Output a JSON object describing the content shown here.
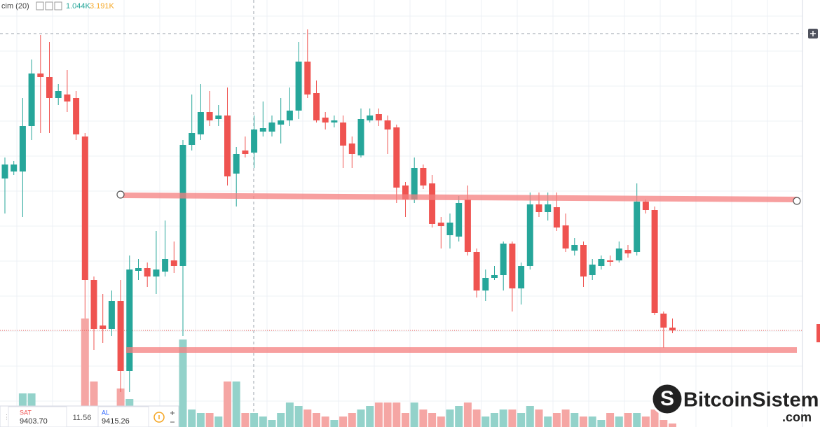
{
  "toolbar": {
    "indicator": "cim (20)",
    "value1": "1.044K",
    "value2": "3.191K"
  },
  "chart_data": {
    "type": "candlestick",
    "open": [
      355,
      365,
      365,
      430,
      505,
      500,
      470,
      475,
      470,
      415,
      210,
      145,
      140,
      180,
      80,
      223,
      227,
      215,
      222,
      238,
      230,
      403,
      418,
      450,
      440,
      445,
      362,
      395,
      392,
      422,
      422,
      432,
      438,
      452,
      522,
      477,
      442,
      435,
      435,
      405,
      388,
      438,
      447,
      438,
      428,
      345,
      325,
      370,
      348,
      292,
      274,
      272,
      325,
      250,
      195,
      213,
      217,
      262,
      198,
      230,
      318,
      307,
      314,
      288,
      252,
      260,
      217,
      230,
      238,
      238,
      253,
      250,
      322,
      310,
      162,
      142
    ],
    "high": [
      385,
      380,
      470,
      525,
      560,
      550,
      490,
      510,
      480,
      420,
      215,
      190,
      195,
      210,
      245,
      240,
      235,
      280,
      295,
      265,
      410,
      475,
      490,
      480,
      460,
      485,
      400,
      415,
      445,
      465,
      445,
      470,
      485,
      550,
      568,
      495,
      450,
      445,
      445,
      415,
      455,
      455,
      455,
      445,
      432,
      350,
      385,
      375,
      360,
      300,
      305,
      330,
      345,
      255,
      225,
      230,
      265,
      265,
      235,
      335,
      335,
      335,
      335,
      305,
      270,
      265,
      240,
      245,
      245,
      265,
      260,
      348,
      325,
      315,
      165,
      155
    ],
    "low": [
      305,
      360,
      300,
      410,
      420,
      420,
      460,
      450,
      410,
      155,
      110,
      120,
      130,
      50,
      50,
      210,
      200,
      190,
      215,
      220,
      130,
      395,
      410,
      430,
      430,
      345,
      315,
      385,
      370,
      415,
      415,
      405,
      430,
      440,
      470,
      435,
      425,
      428,
      370,
      370,
      385,
      435,
      430,
      390,
      320,
      300,
      320,
      340,
      285,
      255,
      255,
      265,
      245,
      185,
      180,
      210,
      195,
      165,
      175,
      225,
      300,
      295,
      280,
      250,
      245,
      200,
      210,
      225,
      230,
      235,
      242,
      245,
      305,
      160,
      113,
      134
    ],
    "close": [
      375,
      375,
      430,
      505,
      500,
      470,
      480,
      465,
      418,
      210,
      140,
      140,
      180,
      80,
      225,
      227,
      215,
      225,
      240,
      230,
      403,
      420,
      450,
      438,
      445,
      358,
      390,
      390,
      425,
      427,
      435,
      438,
      452,
      522,
      475,
      438,
      435,
      438,
      402,
      390,
      440,
      445,
      438,
      425,
      342,
      325,
      370,
      345,
      290,
      287,
      292,
      320,
      250,
      195,
      213,
      217,
      262,
      198,
      230,
      318,
      307,
      318,
      285,
      255,
      260,
      215,
      232,
      240,
      236,
      255,
      248,
      322,
      310,
      163,
      142,
      138
    ],
    "volume": [
      20,
      15,
      48,
      48,
      25,
      20,
      18,
      20,
      30,
      155,
      65,
      30,
      25,
      55,
      40,
      30,
      15,
      20,
      25,
      20,
      125,
      25,
      20,
      20,
      15,
      65,
      65,
      20,
      20,
      15,
      10,
      20,
      35,
      30,
      25,
      20,
      15,
      10,
      15,
      20,
      25,
      30,
      35,
      35,
      35,
      20,
      35,
      25,
      20,
      15,
      25,
      30,
      35,
      25,
      15,
      20,
      25,
      25,
      20,
      30,
      25,
      15,
      20,
      25,
      20,
      15,
      15,
      10,
      20,
      15,
      20,
      20,
      15,
      25,
      10,
      5
    ],
    "up_color": "#26a69a",
    "down_color": "#ef5350",
    "up_volume_color": "#93d2ca",
    "down_volume_color": "#f5a6a4"
  },
  "order_panel": {
    "sell_label": "SAT",
    "sell_price": "9403.70",
    "spread": "11.56",
    "buy_label": "AL",
    "buy_price": "9415.26"
  },
  "watermark": {
    "name": "BitcoinSistemi",
    "suffix": ".com"
  }
}
